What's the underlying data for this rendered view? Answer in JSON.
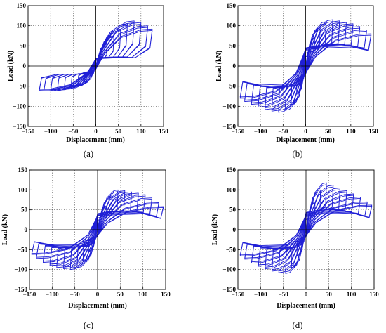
{
  "figure": {
    "panels": [
      {
        "label": "(a)"
      },
      {
        "label": "(b)"
      },
      {
        "label": "(c)"
      },
      {
        "label": "(d)"
      }
    ]
  },
  "colors": {
    "curve": "#1f1fd6",
    "axis": "#000000",
    "grid": "#555555",
    "background": "#ffffff"
  },
  "chart_data": [
    {
      "type": "line",
      "xlabel": "Displacement (mm)",
      "ylabel": "Load (kN)",
      "xlim": [
        -150,
        150
      ],
      "ylim": [
        -150,
        150
      ],
      "xticks": [
        -150,
        -100,
        -50,
        0,
        50,
        100,
        150
      ],
      "yticks": [
        -150,
        -100,
        -50,
        0,
        50,
        100,
        150
      ],
      "grid": true,
      "series": [
        {
          "cycles": [
            {
              "amplitude": 12,
              "peak_pos": 30,
              "peak_neg": -25,
              "residual_pos": 15,
              "residual_neg": -10
            },
            {
              "amplitude": 25,
              "peak_pos": 55,
              "peak_neg": -40,
              "residual_pos": 18,
              "residual_neg": -14
            },
            {
              "amplitude": 40,
              "peak_pos": 75,
              "peak_neg": -50,
              "residual_pos": 20,
              "residual_neg": -16
            },
            {
              "amplitude": 55,
              "peak_pos": 92,
              "peak_neg": -55,
              "residual_pos": 21,
              "residual_neg": -18
            },
            {
              "amplitude": 70,
              "peak_pos": 105,
              "peak_neg": -58,
              "residual_pos": 22,
              "residual_neg": -19
            },
            {
              "amplitude": 85,
              "peak_pos": 112,
              "peak_neg": -60,
              "residual_pos": 22,
              "residual_neg": -20
            },
            {
              "amplitude": 100,
              "peak_pos": 108,
              "peak_neg": -62,
              "residual_pos": 22,
              "residual_neg": -20
            },
            {
              "amplitude": 115,
              "peak_pos": 100,
              "peak_neg": -62,
              "residual_pos": 21,
              "residual_neg": -20
            },
            {
              "amplitude": 125,
              "peak_pos": 92,
              "peak_neg": -60,
              "residual_pos": 20,
              "residual_neg": -20
            }
          ]
        }
      ]
    },
    {
      "type": "line",
      "xlabel": "Displacement (mm)",
      "ylabel": "Load (kN)",
      "xlim": [
        -150,
        150
      ],
      "ylim": [
        -150,
        150
      ],
      "xticks": [
        -150,
        -100,
        -50,
        0,
        50,
        100,
        150
      ],
      "yticks": [
        -150,
        -100,
        -50,
        0,
        50,
        100,
        150
      ],
      "grid": true,
      "series": [
        {
          "cycles": [
            {
              "amplitude": 10,
              "peak_pos": 40,
              "peak_neg": -40,
              "residual_pos": 25,
              "residual_neg": -25
            },
            {
              "amplitude": 20,
              "peak_pos": 70,
              "peak_neg": -70,
              "residual_pos": 35,
              "residual_neg": -35
            },
            {
              "amplitude": 32,
              "peak_pos": 95,
              "peak_neg": -95,
              "residual_pos": 42,
              "residual_neg": -42
            },
            {
              "amplitude": 45,
              "peak_pos": 110,
              "peak_neg": -110,
              "residual_pos": 46,
              "residual_neg": -46
            },
            {
              "amplitude": 60,
              "peak_pos": 115,
              "peak_neg": -115,
              "residual_pos": 48,
              "residual_neg": -48
            },
            {
              "amplitude": 75,
              "peak_pos": 112,
              "peak_neg": -112,
              "residual_pos": 50,
              "residual_neg": -50
            },
            {
              "amplitude": 90,
              "peak_pos": 108,
              "peak_neg": -108,
              "residual_pos": 50,
              "residual_neg": -50
            },
            {
              "amplitude": 105,
              "peak_pos": 105,
              "peak_neg": -102,
              "residual_pos": 50,
              "residual_neg": -50
            },
            {
              "amplitude": 120,
              "peak_pos": 98,
              "peak_neg": -95,
              "residual_pos": 50,
              "residual_neg": -50
            },
            {
              "amplitude": 135,
              "peak_pos": 90,
              "peak_neg": -88,
              "residual_pos": 48,
              "residual_neg": -48
            },
            {
              "amplitude": 145,
              "peak_pos": 80,
              "peak_neg": -80,
              "residual_pos": 45,
              "residual_neg": -45
            }
          ]
        }
      ]
    },
    {
      "type": "line",
      "xlabel": "Displacement (mm)",
      "ylabel": "Load (kN)",
      "xlim": [
        -150,
        150
      ],
      "ylim": [
        -150,
        150
      ],
      "xticks": [
        -150,
        -100,
        -50,
        0,
        50,
        100,
        150
      ],
      "yticks": [
        -150,
        -100,
        -50,
        0,
        50,
        100,
        150
      ],
      "grid": true,
      "series": [
        {
          "cycles": [
            {
              "amplitude": 10,
              "peak_pos": 35,
              "peak_neg": -30,
              "residual_pos": 25,
              "residual_neg": -20
            },
            {
              "amplitude": 20,
              "peak_pos": 60,
              "peak_neg": -55,
              "residual_pos": 32,
              "residual_neg": -28
            },
            {
              "amplitude": 32,
              "peak_pos": 85,
              "peak_neg": -80,
              "residual_pos": 38,
              "residual_neg": -34
            },
            {
              "amplitude": 45,
              "peak_pos": 100,
              "peak_neg": -95,
              "residual_pos": 42,
              "residual_neg": -38
            },
            {
              "amplitude": 60,
              "peak_pos": 98,
              "peak_neg": -100,
              "residual_pos": 44,
              "residual_neg": -40
            },
            {
              "amplitude": 75,
              "peak_pos": 95,
              "peak_neg": -98,
              "residual_pos": 45,
              "residual_neg": -42
            },
            {
              "amplitude": 90,
              "peak_pos": 92,
              "peak_neg": -95,
              "residual_pos": 45,
              "residual_neg": -42
            },
            {
              "amplitude": 105,
              "peak_pos": 88,
              "peak_neg": -90,
              "residual_pos": 44,
              "residual_neg": -42
            },
            {
              "amplitude": 120,
              "peak_pos": 80,
              "peak_neg": -82,
              "residual_pos": 42,
              "residual_neg": -40
            },
            {
              "amplitude": 135,
              "peak_pos": 68,
              "peak_neg": -72,
              "residual_pos": 40,
              "residual_neg": -38
            },
            {
              "amplitude": 145,
              "peak_pos": 58,
              "peak_neg": -62,
              "residual_pos": 38,
              "residual_neg": -36
            }
          ]
        }
      ]
    },
    {
      "type": "line",
      "xlabel": "Displacement (mm)",
      "ylabel": "Load (kN)",
      "xlim": [
        -150,
        150
      ],
      "ylim": [
        -150,
        150
      ],
      "xticks": [
        -150,
        -100,
        -50,
        0,
        50,
        100,
        150
      ],
      "yticks": [
        -150,
        -100,
        -50,
        0,
        50,
        100,
        150
      ],
      "grid": true,
      "series": [
        {
          "cycles": [
            {
              "amplitude": 10,
              "peak_pos": 40,
              "peak_neg": -38,
              "residual_pos": 28,
              "residual_neg": -24
            },
            {
              "amplitude": 20,
              "peak_pos": 70,
              "peak_neg": -65,
              "residual_pos": 35,
              "residual_neg": -30
            },
            {
              "amplitude": 32,
              "peak_pos": 100,
              "peak_neg": -95,
              "residual_pos": 42,
              "residual_neg": -38
            },
            {
              "amplitude": 45,
              "peak_pos": 118,
              "peak_neg": -110,
              "residual_pos": 46,
              "residual_neg": -42
            },
            {
              "amplitude": 60,
              "peak_pos": 112,
              "peak_neg": -108,
              "residual_pos": 48,
              "residual_neg": -44
            },
            {
              "amplitude": 75,
              "peak_pos": 105,
              "peak_neg": -104,
              "residual_pos": 48,
              "residual_neg": -45
            },
            {
              "amplitude": 90,
              "peak_pos": 98,
              "peak_neg": -98,
              "residual_pos": 48,
              "residual_neg": -45
            },
            {
              "amplitude": 105,
              "peak_pos": 90,
              "peak_neg": -92,
              "residual_pos": 46,
              "residual_neg": -44
            },
            {
              "amplitude": 120,
              "peak_pos": 82,
              "peak_neg": -84,
              "residual_pos": 44,
              "residual_neg": -42
            },
            {
              "amplitude": 135,
              "peak_pos": 70,
              "peak_neg": -74,
              "residual_pos": 42,
              "residual_neg": -40
            },
            {
              "amplitude": 145,
              "peak_pos": 62,
              "peak_neg": -66,
              "residual_pos": 40,
              "residual_neg": -38
            }
          ]
        }
      ]
    }
  ]
}
